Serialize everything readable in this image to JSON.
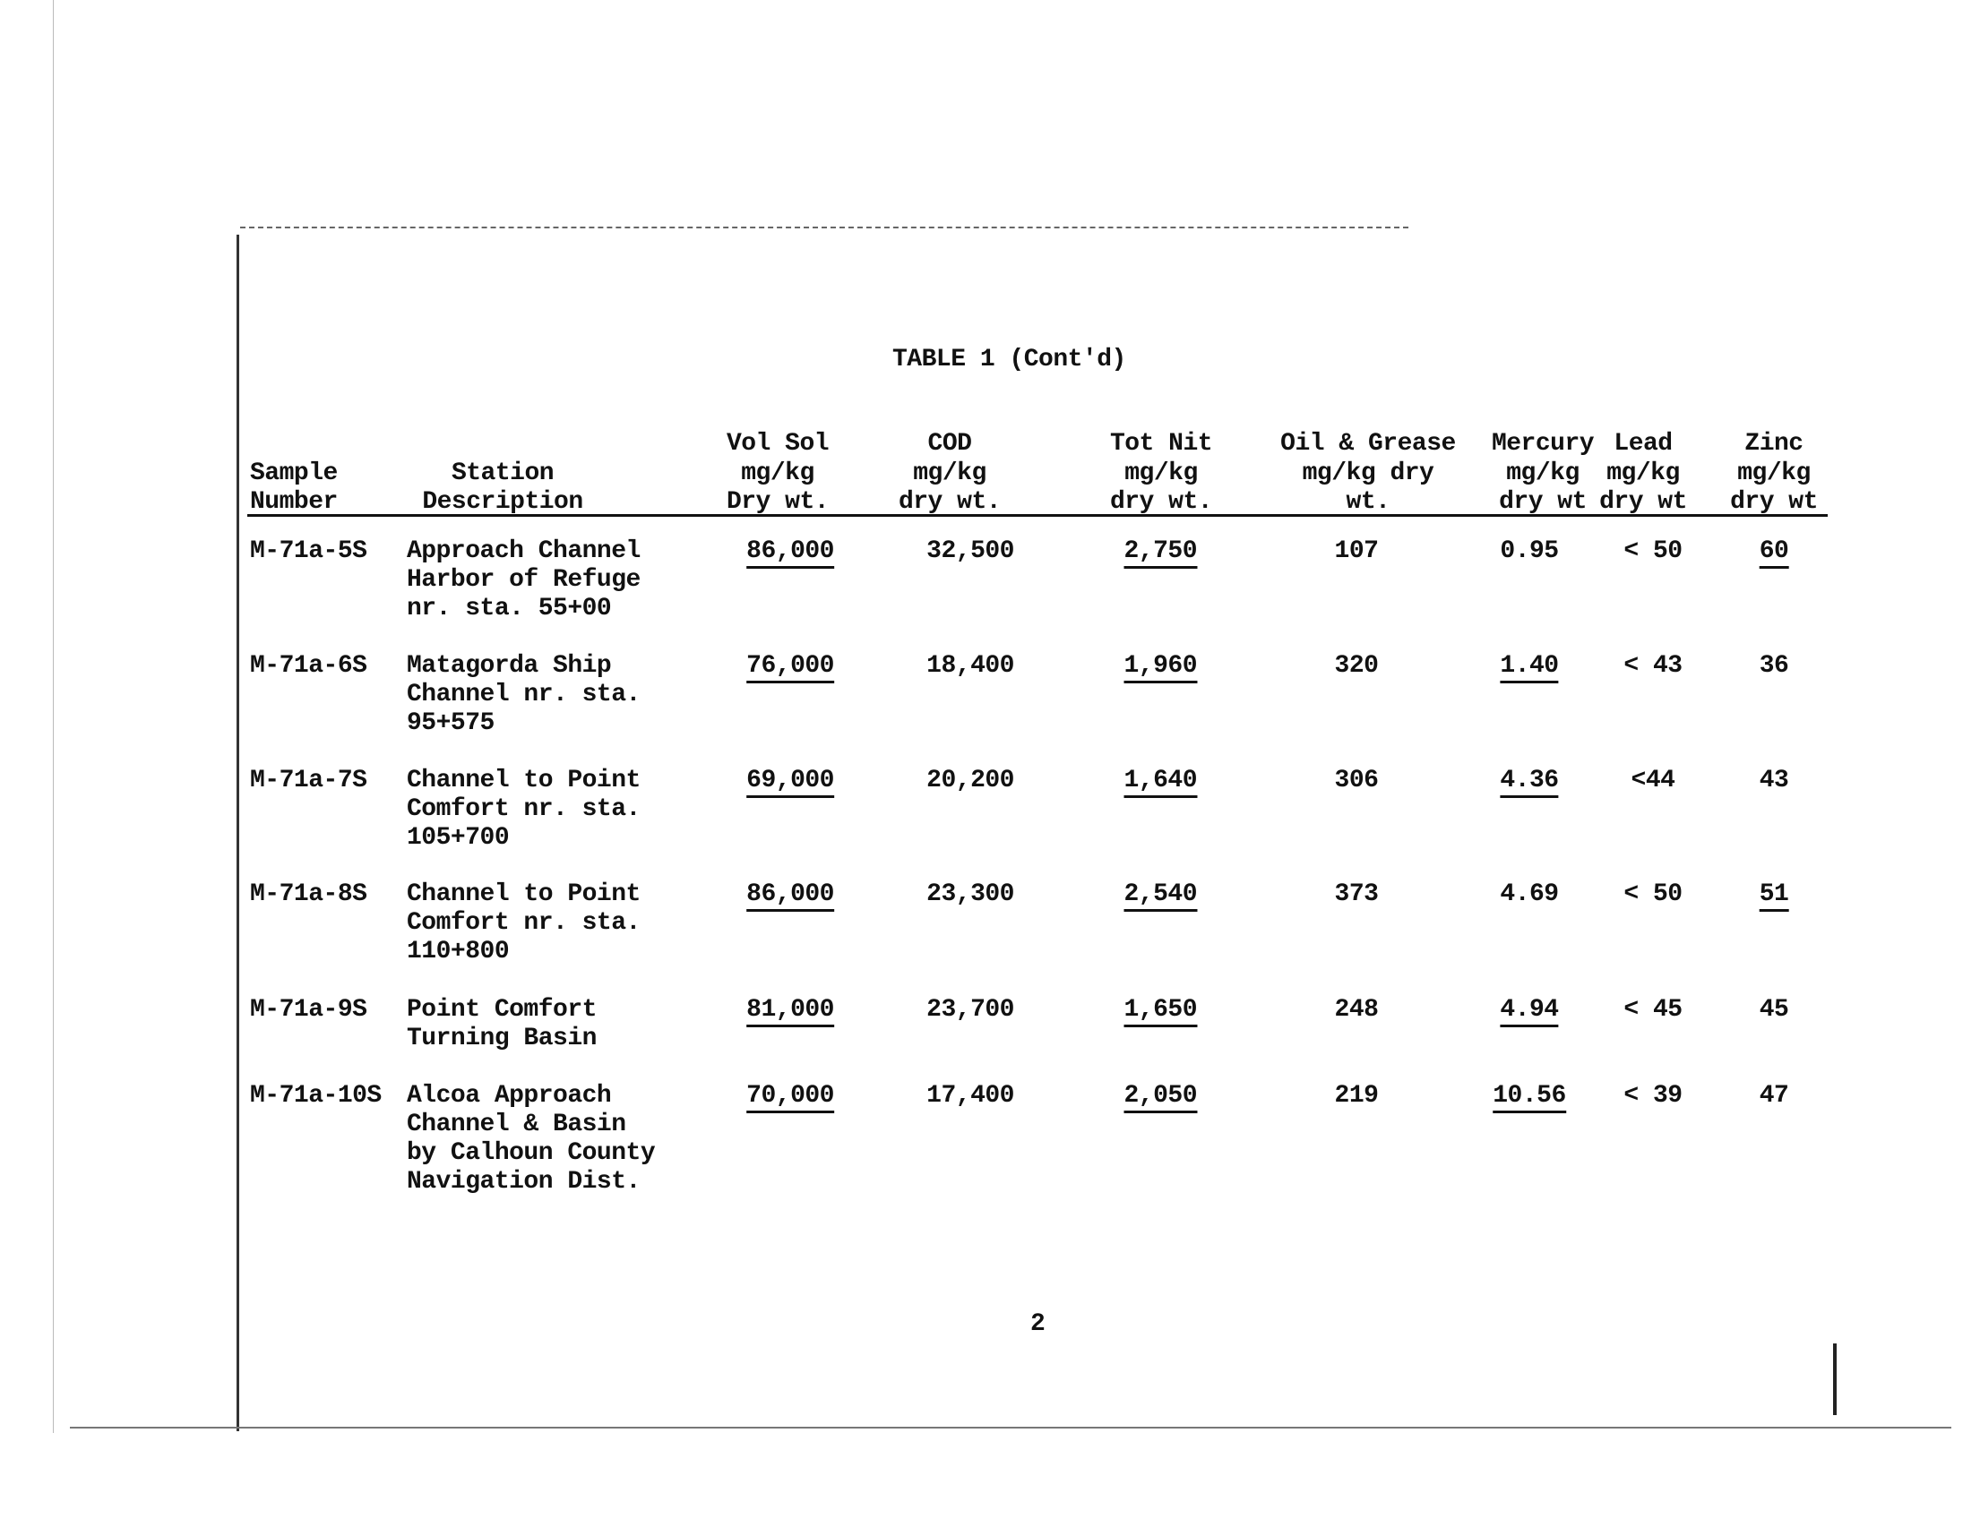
{
  "title": "TABLE 1 (Cont'd)",
  "columns": [
    {
      "key": "sample",
      "lines": [
        "",
        "Sample",
        "Number"
      ]
    },
    {
      "key": "station",
      "lines": [
        "",
        "Station",
        "Description"
      ]
    },
    {
      "key": "vol_sol",
      "lines": [
        "Vol Sol",
        "mg/kg",
        "Dry wt."
      ]
    },
    {
      "key": "cod",
      "lines": [
        "COD",
        "mg/kg",
        "dry wt."
      ]
    },
    {
      "key": "tot_nit",
      "lines": [
        "Tot Nit",
        "mg/kg",
        "dry wt."
      ]
    },
    {
      "key": "oil_grease",
      "lines": [
        "Oil & Grease",
        "mg/kg dry",
        "wt."
      ]
    },
    {
      "key": "mercury",
      "lines": [
        "Mercury",
        "mg/kg",
        "dry wt"
      ]
    },
    {
      "key": "lead",
      "lines": [
        "Lead",
        "mg/kg",
        "dry wt"
      ]
    },
    {
      "key": "zinc",
      "lines": [
        "Zinc",
        "mg/kg",
        "dry wt"
      ]
    }
  ],
  "rows": [
    {
      "sample": "M-71a-5S",
      "station": [
        "Approach Channel",
        "Harbor of Refuge",
        "nr. sta. 55+00"
      ],
      "vol_sol": {
        "value": "86,000",
        "underlined": true
      },
      "cod": {
        "value": "32,500",
        "underlined": false
      },
      "tot_nit": {
        "value": "2,750",
        "underlined": true
      },
      "oil_grease": {
        "value": "107",
        "underlined": false
      },
      "mercury": {
        "value": "0.95",
        "underlined": false
      },
      "lead": {
        "value": "< 50",
        "underlined": false
      },
      "zinc": {
        "value": "60",
        "underlined": true
      }
    },
    {
      "sample": "M-71a-6S",
      "station": [
        "Matagorda Ship",
        "Channel nr. sta.",
        "95+575"
      ],
      "vol_sol": {
        "value": "76,000",
        "underlined": true
      },
      "cod": {
        "value": "18,400",
        "underlined": false
      },
      "tot_nit": {
        "value": "1,960",
        "underlined": true
      },
      "oil_grease": {
        "value": "320",
        "underlined": false
      },
      "mercury": {
        "value": "1.40",
        "underlined": true
      },
      "lead": {
        "value": "< 43",
        "underlined": false
      },
      "zinc": {
        "value": "36",
        "underlined": false
      }
    },
    {
      "sample": "M-71a-7S",
      "station": [
        "Channel to Point",
        "Comfort nr. sta.",
        "105+700"
      ],
      "vol_sol": {
        "value": "69,000",
        "underlined": true
      },
      "cod": {
        "value": "20,200",
        "underlined": false
      },
      "tot_nit": {
        "value": "1,640",
        "underlined": true
      },
      "oil_grease": {
        "value": "306",
        "underlined": false
      },
      "mercury": {
        "value": "4.36",
        "underlined": true
      },
      "lead": {
        "value": "<44",
        "underlined": false
      },
      "zinc": {
        "value": "43",
        "underlined": false
      }
    },
    {
      "sample": "M-71a-8S",
      "station": [
        "Channel to Point",
        "Comfort nr. sta.",
        "110+800"
      ],
      "vol_sol": {
        "value": "86,000",
        "underlined": true
      },
      "cod": {
        "value": "23,300",
        "underlined": false
      },
      "tot_nit": {
        "value": "2,540",
        "underlined": true
      },
      "oil_grease": {
        "value": "373",
        "underlined": false
      },
      "mercury": {
        "value": "4.69",
        "underlined": false
      },
      "lead": {
        "value": "< 50",
        "underlined": false
      },
      "zinc": {
        "value": "51",
        "underlined": true
      }
    },
    {
      "sample": "M-71a-9S",
      "station": [
        "Point Comfort",
        "Turning Basin"
      ],
      "vol_sol": {
        "value": "81,000",
        "underlined": true
      },
      "cod": {
        "value": "23,700",
        "underlined": false
      },
      "tot_nit": {
        "value": "1,650",
        "underlined": true
      },
      "oil_grease": {
        "value": "248",
        "underlined": false
      },
      "mercury": {
        "value": "4.94",
        "underlined": true
      },
      "lead": {
        "value": "< 45",
        "underlined": false
      },
      "zinc": {
        "value": "45",
        "underlined": false
      }
    },
    {
      "sample": "M-71a-10S",
      "station": [
        "Alcoa Approach",
        "Channel & Basin",
        "by Calhoun County",
        "Navigation Dist."
      ],
      "vol_sol": {
        "value": "70,000",
        "underlined": true
      },
      "cod": {
        "value": "17,400",
        "underlined": false
      },
      "tot_nit": {
        "value": "2,050",
        "underlined": true
      },
      "oil_grease": {
        "value": "219",
        "underlined": false
      },
      "mercury": {
        "value": "10.56",
        "underlined": true
      },
      "lead": {
        "value": "< 39",
        "underlined": false
      },
      "zinc": {
        "value": "47",
        "underlined": false
      }
    }
  ],
  "page_number": "2"
}
